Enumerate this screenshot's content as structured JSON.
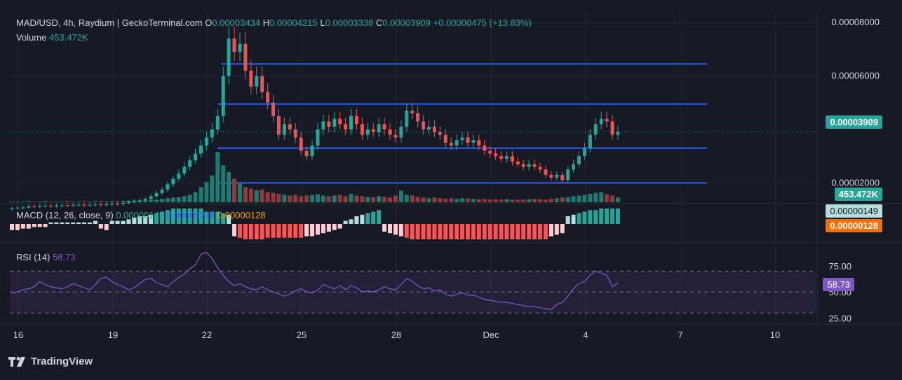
{
  "header": {
    "symbol_line": "MAD/USD, 4h, Raydium | GeckoTerminal.com",
    "o_label": "O",
    "o_value": "0.00003434",
    "h_label": "H",
    "h_value": "0.00004215",
    "l_label": "L",
    "l_value": "0.00003338",
    "c_label": "C",
    "c_value": "0.00003909",
    "change": "+0.00000475 (+13.83%)",
    "volume_label": "Volume",
    "volume_value": "453.472K"
  },
  "macd_legend": {
    "label": "MACD (12, 26, close, 9)",
    "value1": "0.00000149",
    "value2": "0.00000278",
    "value3": "0.00000128"
  },
  "rsi_legend": {
    "label": "RSI (14)",
    "value": "58.73"
  },
  "tags": {
    "price": "0.00003909",
    "volume": "453.472K",
    "macd_line": "0.00000149",
    "macd_signal": "0.00000128",
    "rsi": "58.73"
  },
  "brand": {
    "name": "TradingView",
    "logo": "tradingview-logo"
  },
  "colors": {
    "up": "#26a69a",
    "down": "#ef5350",
    "level_line": "#2962ff",
    "macd_line": "#2962ff",
    "signal_line": "#ff6d00",
    "rsi_line": "#7e57c2",
    "background": "#161a25"
  },
  "chart_data": [
    {
      "type": "candlestick",
      "title": "MAD/USD, 4h, Raydium",
      "x_ticks": [
        "16",
        "19",
        "22",
        "25",
        "28",
        "Dec",
        "4",
        "7",
        "10"
      ],
      "y_ticks": [
        "0.00008000",
        "0.00006000",
        "0.00002000"
      ],
      "ylim": [
        1.25e-05,
        8.45e-05
      ],
      "horizontal_levels": [
        6.45e-05,
        4.95e-05,
        3.3e-05,
        2e-05
      ],
      "last_price": 3.909e-05,
      "close_series": [
        1.05e-05,
        1.07e-05,
        1.08e-05,
        1.12e-05,
        1.11e-05,
        1.13e-05,
        1.14e-05,
        1.12e-05,
        1.15e-05,
        1.16e-05,
        1.15e-05,
        1.17e-05,
        1.18e-05,
        1.16e-05,
        1.18e-05,
        1.19e-05,
        1.17e-05,
        1.2e-05,
        1.22e-05,
        1.21e-05,
        1.25e-05,
        1.28e-05,
        1.32e-05,
        1.35e-05,
        1.4e-05,
        1.5e-05,
        1.62e-05,
        1.75e-05,
        1.95e-05,
        2.15e-05,
        2.35e-05,
        2.6e-05,
        2.85e-05,
        3.1e-05,
        3.4e-05,
        3.7e-05,
        4e-05,
        4.5e-05,
        6e-05,
        7.4e-05,
        6.9e-05,
        7.2e-05,
        6.2e-05,
        5.6e-05,
        6e-05,
        5.4e-05,
        5e-05,
        4.5e-05,
        3.8e-05,
        4.2e-05,
        4e-05,
        3.7e-05,
        3.2e-05,
        3e-05,
        3.4e-05,
        4e-05,
        4.3e-05,
        4.1e-05,
        4.4e-05,
        4.2e-05,
        4e-05,
        4.5e-05,
        4.2e-05,
        3.8e-05,
        4e-05,
        3.9e-05,
        4.2e-05,
        4e-05,
        3.8e-05,
        3.7e-05,
        4.1e-05,
        4.7e-05,
        4.6e-05,
        4.3e-05,
        4e-05,
        4.1e-05,
        3.9e-05,
        3.8e-05,
        3.5e-05,
        3.4e-05,
        3.6e-05,
        3.7e-05,
        3.5e-05,
        3.6e-05,
        3.4e-05,
        3.2e-05,
        3.1e-05,
        3e-05,
        2.9e-05,
        3e-05,
        2.8e-05,
        2.7e-05,
        2.6e-05,
        2.7e-05,
        2.6e-05,
        2.5e-05,
        2.3e-05,
        2.2e-05,
        2.3e-05,
        2.1e-05,
        2.5e-05,
        2.7e-05,
        3e-05,
        3.3e-05,
        3.8e-05,
        4.2e-05,
        4.4e-05,
        4.3e-05,
        3.8e-05,
        3.91e-05
      ],
      "volume_series": [
        2,
        2,
        2,
        3,
        2,
        2,
        3,
        2,
        2,
        2,
        3,
        2,
        2,
        3,
        2,
        3,
        3,
        2,
        3,
        3,
        4,
        4,
        5,
        5,
        6,
        7,
        8,
        10,
        12,
        14,
        15,
        18,
        22,
        30,
        45,
        60,
        80,
        150,
        110,
        90,
        70,
        55,
        45,
        40,
        35,
        38,
        30,
        28,
        25,
        22,
        20,
        22,
        18,
        20,
        22,
        24,
        20,
        18,
        20,
        22,
        18,
        25,
        20,
        18,
        16,
        15,
        18,
        16,
        14,
        20,
        35,
        22,
        20,
        16,
        14,
        12,
        14,
        12,
        10,
        12,
        10,
        12,
        11,
        10,
        9,
        10,
        8,
        9,
        8,
        9,
        8,
        7,
        8,
        9,
        10,
        9,
        8,
        10,
        12,
        14,
        15,
        18,
        20,
        22,
        25,
        28,
        30,
        24,
        20,
        14
      ]
    },
    {
      "type": "macd",
      "title": "MACD (12, 26, close, 9)",
      "histogram": [
        -0.4,
        -0.4,
        -0.3,
        -0.3,
        -0.2,
        -0.2,
        -0.2,
        0.1,
        0.1,
        0.1,
        0.1,
        0.1,
        0.1,
        0.1,
        0.1,
        0.2,
        -0.3,
        -0.4,
        0.2,
        0.2,
        0.2,
        0.3,
        0.4,
        0.5,
        0.5,
        0.6,
        0.7,
        0.8,
        0.9,
        1.0,
        1.0,
        1.0,
        1.0,
        1.0,
        1.0,
        0.8,
        0.8,
        0.8,
        0.7,
        0.6,
        -0.8,
        -0.9,
        -1.0,
        -1.0,
        -1.0,
        -1.0,
        -0.9,
        -0.9,
        -0.9,
        -0.9,
        -0.9,
        -0.9,
        -0.9,
        -0.8,
        -0.8,
        -0.7,
        -0.6,
        -0.5,
        -0.4,
        -0.3,
        0.2,
        0.3,
        0.5,
        0.6,
        0.7,
        0.8,
        0.9,
        -0.5,
        -0.6,
        -0.7,
        -0.8,
        -0.9,
        -1.0,
        -1.0,
        -1.0,
        -1.0,
        -1.0,
        -1.0,
        -1.0,
        -1.0,
        -1.0,
        -1.0,
        -1.0,
        -1.0,
        -1.0,
        -1.0,
        -1.0,
        -1.0,
        -1.0,
        -1.0,
        -1.0,
        -1.0,
        -1.0,
        -1.0,
        -1.0,
        -1.0,
        -1.0,
        -0.8,
        -0.7,
        -0.6,
        0.5,
        0.6,
        0.7,
        0.8,
        0.9,
        0.9,
        1.0,
        1.0,
        1.0,
        1.0
      ]
    },
    {
      "type": "line",
      "title": "RSI (14)",
      "y_ticks": [
        "75.00",
        "50.00",
        "25.00"
      ],
      "ylim": [
        20,
        95
      ],
      "band": [
        30,
        70
      ],
      "middle": 50,
      "values": [
        49,
        50,
        52,
        53,
        55,
        60,
        57,
        55,
        54,
        53,
        55,
        58,
        56,
        54,
        52,
        57,
        63,
        64,
        60,
        57,
        55,
        52,
        54,
        58,
        62,
        63,
        59,
        57,
        55,
        60,
        64,
        67,
        72,
        76,
        86,
        88,
        82,
        73,
        66,
        60,
        56,
        58,
        55,
        53,
        52,
        55,
        52,
        50,
        48,
        46,
        48,
        51,
        53,
        50,
        49,
        52,
        57,
        55,
        53,
        56,
        52,
        56,
        54,
        50,
        51,
        50,
        52,
        55,
        53,
        52,
        57,
        63,
        60,
        56,
        53,
        54,
        51,
        52,
        48,
        46,
        48,
        49,
        47,
        47,
        45,
        43,
        42,
        41,
        40,
        40,
        39,
        38,
        37,
        36,
        36,
        35,
        34,
        33,
        38,
        40,
        46,
        53,
        58,
        60,
        66,
        70,
        68,
        66,
        55,
        58.73
      ]
    }
  ]
}
